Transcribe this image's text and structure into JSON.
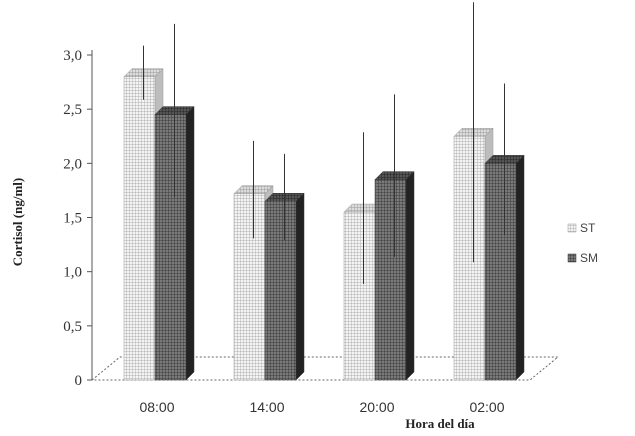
{
  "chart_data": {
    "type": "bar",
    "style": "3d-clustered-column",
    "xlabel": "Hora del día",
    "ylabel": "Cortisol (ng/ml)",
    "ylim": [
      0,
      3.0
    ],
    "yticks": [
      "0",
      "0,5",
      "1,0",
      "1,5",
      "2,0",
      "2,5",
      "3,0"
    ],
    "categories": [
      "08:00",
      "14:00",
      "20:00",
      "02:00"
    ],
    "series": [
      {
        "name": "ST",
        "values": [
          2.8,
          1.72,
          1.55,
          2.25
        ],
        "error": [
          0.25,
          0.45,
          0.7,
          1.2
        ],
        "pattern": "light-grid"
      },
      {
        "name": "SM",
        "values": [
          2.45,
          1.65,
          1.85,
          2.0
        ],
        "error": [
          0.8,
          0.4,
          0.75,
          0.7
        ],
        "pattern": "dark-grid"
      }
    ],
    "legend": "right",
    "grid": false
  }
}
